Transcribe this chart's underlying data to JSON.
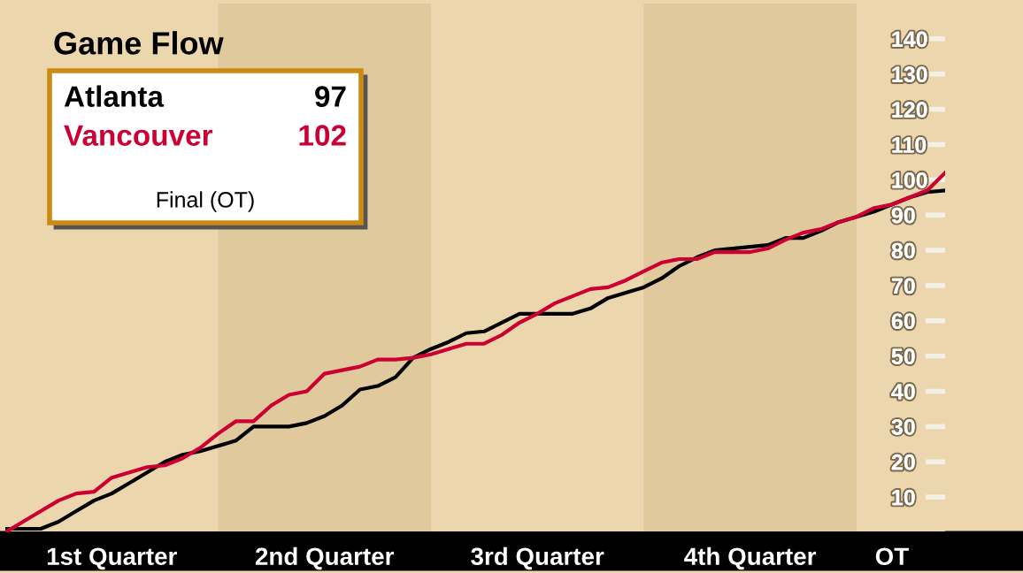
{
  "chart_data": {
    "type": "line",
    "title": "Game Flow",
    "categories": [
      null,
      null,
      null,
      null,
      null,
      null,
      "1st Quarter",
      null,
      null,
      null,
      null,
      null,
      null,
      null,
      null,
      null,
      null,
      null,
      "2nd Quarter",
      null,
      null,
      null,
      null,
      null,
      null,
      null,
      null,
      null,
      null,
      null,
      "3rd Quarter",
      null,
      null,
      null,
      null,
      null,
      null,
      null,
      null,
      null,
      null,
      null,
      "4th Quarter",
      null,
      null,
      null,
      null,
      null,
      null,
      null,
      "OT",
      null,
      null,
      null
    ],
    "ylim": [
      0,
      150
    ],
    "yticks": [
      10,
      20,
      30,
      40,
      50,
      60,
      70,
      80,
      90,
      100,
      110,
      120,
      130,
      140
    ],
    "series": [
      {
        "name": "Atlanta",
        "color": "#000000",
        "values": [
          1,
          1,
          1,
          3,
          6,
          9,
          11,
          14,
          17,
          20,
          22,
          23,
          24.5,
          26,
          30,
          30,
          30,
          31,
          33,
          36,
          40.5,
          41.5,
          44,
          49.5,
          52,
          54,
          56.5,
          57,
          59.5,
          62,
          62,
          62,
          62,
          63.5,
          66.5,
          68,
          69.5,
          72,
          75.5,
          78,
          80,
          80.5,
          81,
          81.5,
          83.5,
          83.5,
          85.5,
          88,
          89.5,
          91,
          93,
          95,
          96.5,
          97
        ]
      },
      {
        "name": "Vancouver",
        "color": "#cc0033",
        "values": [
          0,
          3,
          6,
          9,
          11,
          11.5,
          15.5,
          17,
          18.5,
          19,
          21,
          24,
          28,
          31.5,
          31.5,
          36,
          39,
          40,
          45,
          46,
          47,
          49,
          49,
          49.5,
          50.5,
          52,
          53.5,
          53.5,
          56,
          59.5,
          62,
          65,
          67,
          69,
          69.5,
          71.5,
          74,
          76.5,
          77.5,
          77.5,
          79.5,
          79.5,
          79.5,
          80.5,
          83,
          85,
          86,
          88,
          89.5,
          92,
          93,
          95,
          97,
          102
        ]
      }
    ],
    "legend": "top left",
    "annotations": [
      "97",
      "102",
      "Final (OT)"
    ],
    "grid": false,
    "marker": "none",
    "line_style": "solid"
  }
}
